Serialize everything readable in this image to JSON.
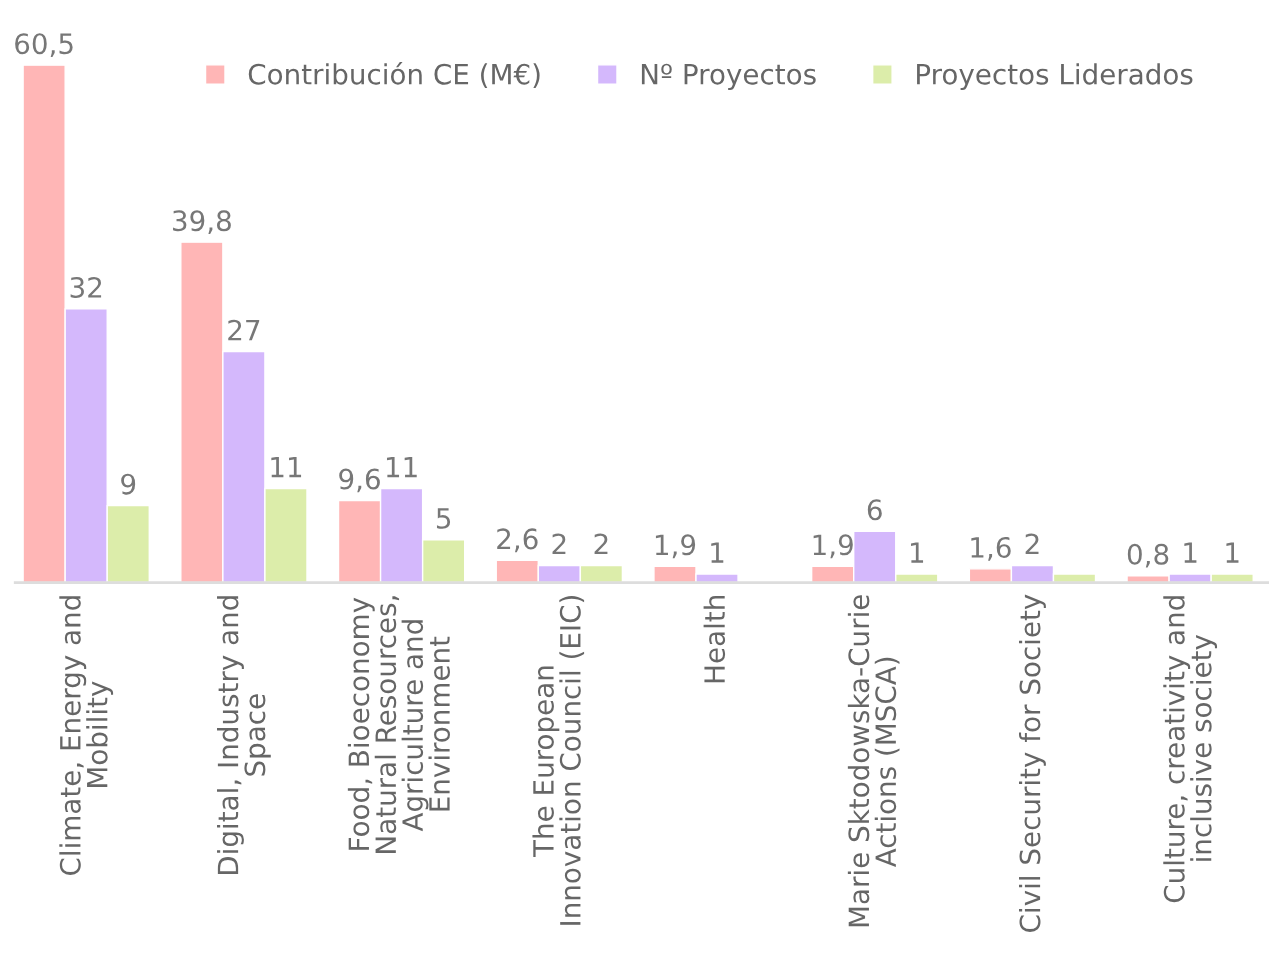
{
  "chart_data": {
    "type": "bar",
    "categories": [
      "Climate, Energy and\nMobility",
      "Digital, Industry and\nSpace",
      "Food, Bioeconomy\nNatural Resources,\nAgriculture and\nEnvironment",
      "The European\nInnovation Council (EIC)",
      "Health",
      "Marie Sktodowska-Curie\nActions (MSCA)",
      "Civil Security for Society",
      "Culture, creativity and\ninclusive society"
    ],
    "series": [
      {
        "name": "Contribución CE (M€)",
        "color": "#ffb6b6",
        "values": [
          60.5,
          39.8,
          9.6,
          2.6,
          1.9,
          1.9,
          1.6,
          0.8
        ],
        "value_labels": [
          "60,5",
          "39,8",
          "9,6",
          "2,6",
          "1,9",
          "1,9",
          "1,6",
          "0,8"
        ]
      },
      {
        "name": "Nº Proyectos",
        "color": "#d4b8fc",
        "values": [
          32,
          27,
          11,
          2,
          1,
          6,
          2,
          1
        ],
        "value_labels": [
          "32",
          "27",
          "11",
          "2",
          "1",
          "6",
          "2",
          "1"
        ]
      },
      {
        "name": "Proyectos Liderados",
        "color": "#dcedaa",
        "values": [
          9,
          11,
          5,
          2,
          null,
          1,
          1,
          1
        ],
        "value_labels": [
          "9",
          "11",
          "5",
          "2",
          null,
          "1",
          null,
          "1"
        ]
      }
    ],
    "legend": "top right",
    "grid": false
  }
}
